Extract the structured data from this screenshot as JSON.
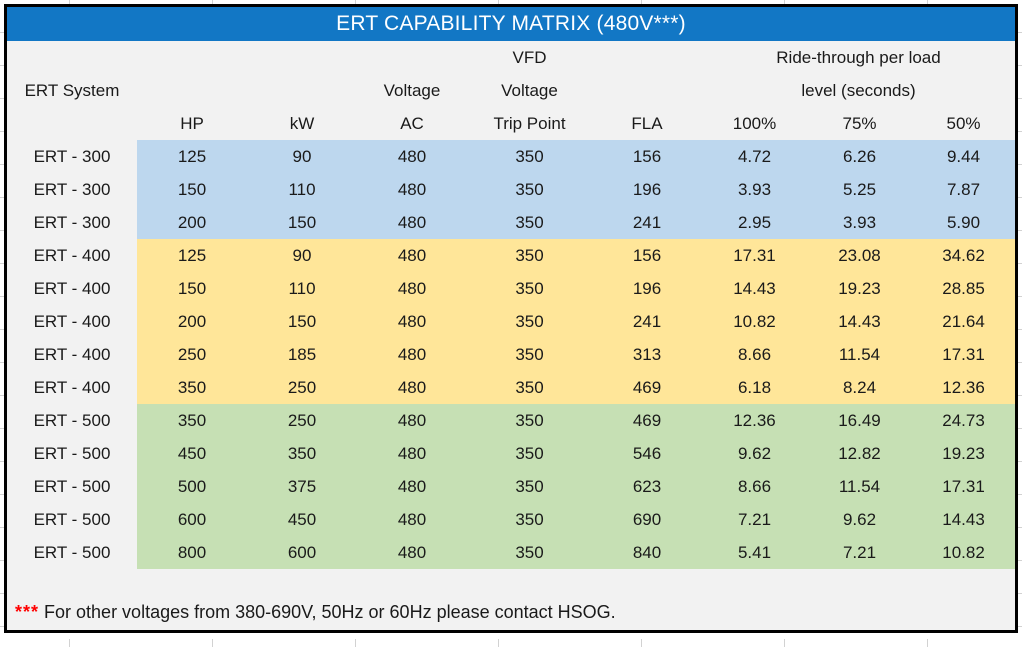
{
  "title": "ERT CAPABILITY MATRIX (480V***)",
  "table": {
    "header": {
      "system_label": "ERT System",
      "vfd_top": "VFD",
      "voltage_ac_label": "Voltage",
      "vfd_mid": "Voltage",
      "ride_through_line1": "Ride-through per load",
      "ride_through_line2": "level (seconds)",
      "columns": [
        "HP",
        "kW",
        "AC",
        "Trip Point",
        "FLA",
        "100%",
        "75%",
        "50%"
      ]
    },
    "groups": [
      {
        "name": "ERT - 300",
        "color": "#BDD7EE",
        "rows": [
          [
            "125",
            "90",
            "480",
            "350",
            "156",
            "4.72",
            "6.26",
            "9.44"
          ],
          [
            "150",
            "110",
            "480",
            "350",
            "196",
            "3.93",
            "5.25",
            "7.87"
          ],
          [
            "200",
            "150",
            "480",
            "350",
            "241",
            "2.95",
            "3.93",
            "5.90"
          ]
        ]
      },
      {
        "name": "ERT - 400",
        "color": "#FFE699",
        "rows": [
          [
            "125",
            "90",
            "480",
            "350",
            "156",
            "17.31",
            "23.08",
            "34.62"
          ],
          [
            "150",
            "110",
            "480",
            "350",
            "196",
            "14.43",
            "19.23",
            "28.85"
          ],
          [
            "200",
            "150",
            "480",
            "350",
            "241",
            "10.82",
            "14.43",
            "21.64"
          ],
          [
            "250",
            "185",
            "480",
            "350",
            "313",
            "8.66",
            "11.54",
            "17.31"
          ],
          [
            "350",
            "250",
            "480",
            "350",
            "469",
            "6.18",
            "8.24",
            "12.36"
          ]
        ]
      },
      {
        "name": "ERT - 500",
        "color": "#C6E0B4",
        "rows": [
          [
            "350",
            "250",
            "480",
            "350",
            "469",
            "12.36",
            "16.49",
            "24.73"
          ],
          [
            "450",
            "350",
            "480",
            "350",
            "546",
            "9.62",
            "12.82",
            "19.23"
          ],
          [
            "500",
            "375",
            "480",
            "350",
            "623",
            "8.66",
            "11.54",
            "17.31"
          ],
          [
            "600",
            "450",
            "480",
            "350",
            "690",
            "7.21",
            "9.62",
            "14.43"
          ],
          [
            "800",
            "600",
            "480",
            "350",
            "840",
            "5.41",
            "7.21",
            "10.82"
          ]
        ]
      }
    ]
  },
  "footer": {
    "marker": "***",
    "note": "For other voltages from 380-690V, 50Hz or 60Hz please contact HSOG."
  },
  "colors": {
    "title_bg": "#1277C5",
    "title_text": "#FFFFFF",
    "band_blue": "#BDD7EE",
    "band_yellow": "#FFE699",
    "band_green": "#C6E0B4",
    "table_bg": "#F2F2F2",
    "border": "#000000",
    "marker_red": "#FF0000",
    "text": "#1A1A1A"
  }
}
